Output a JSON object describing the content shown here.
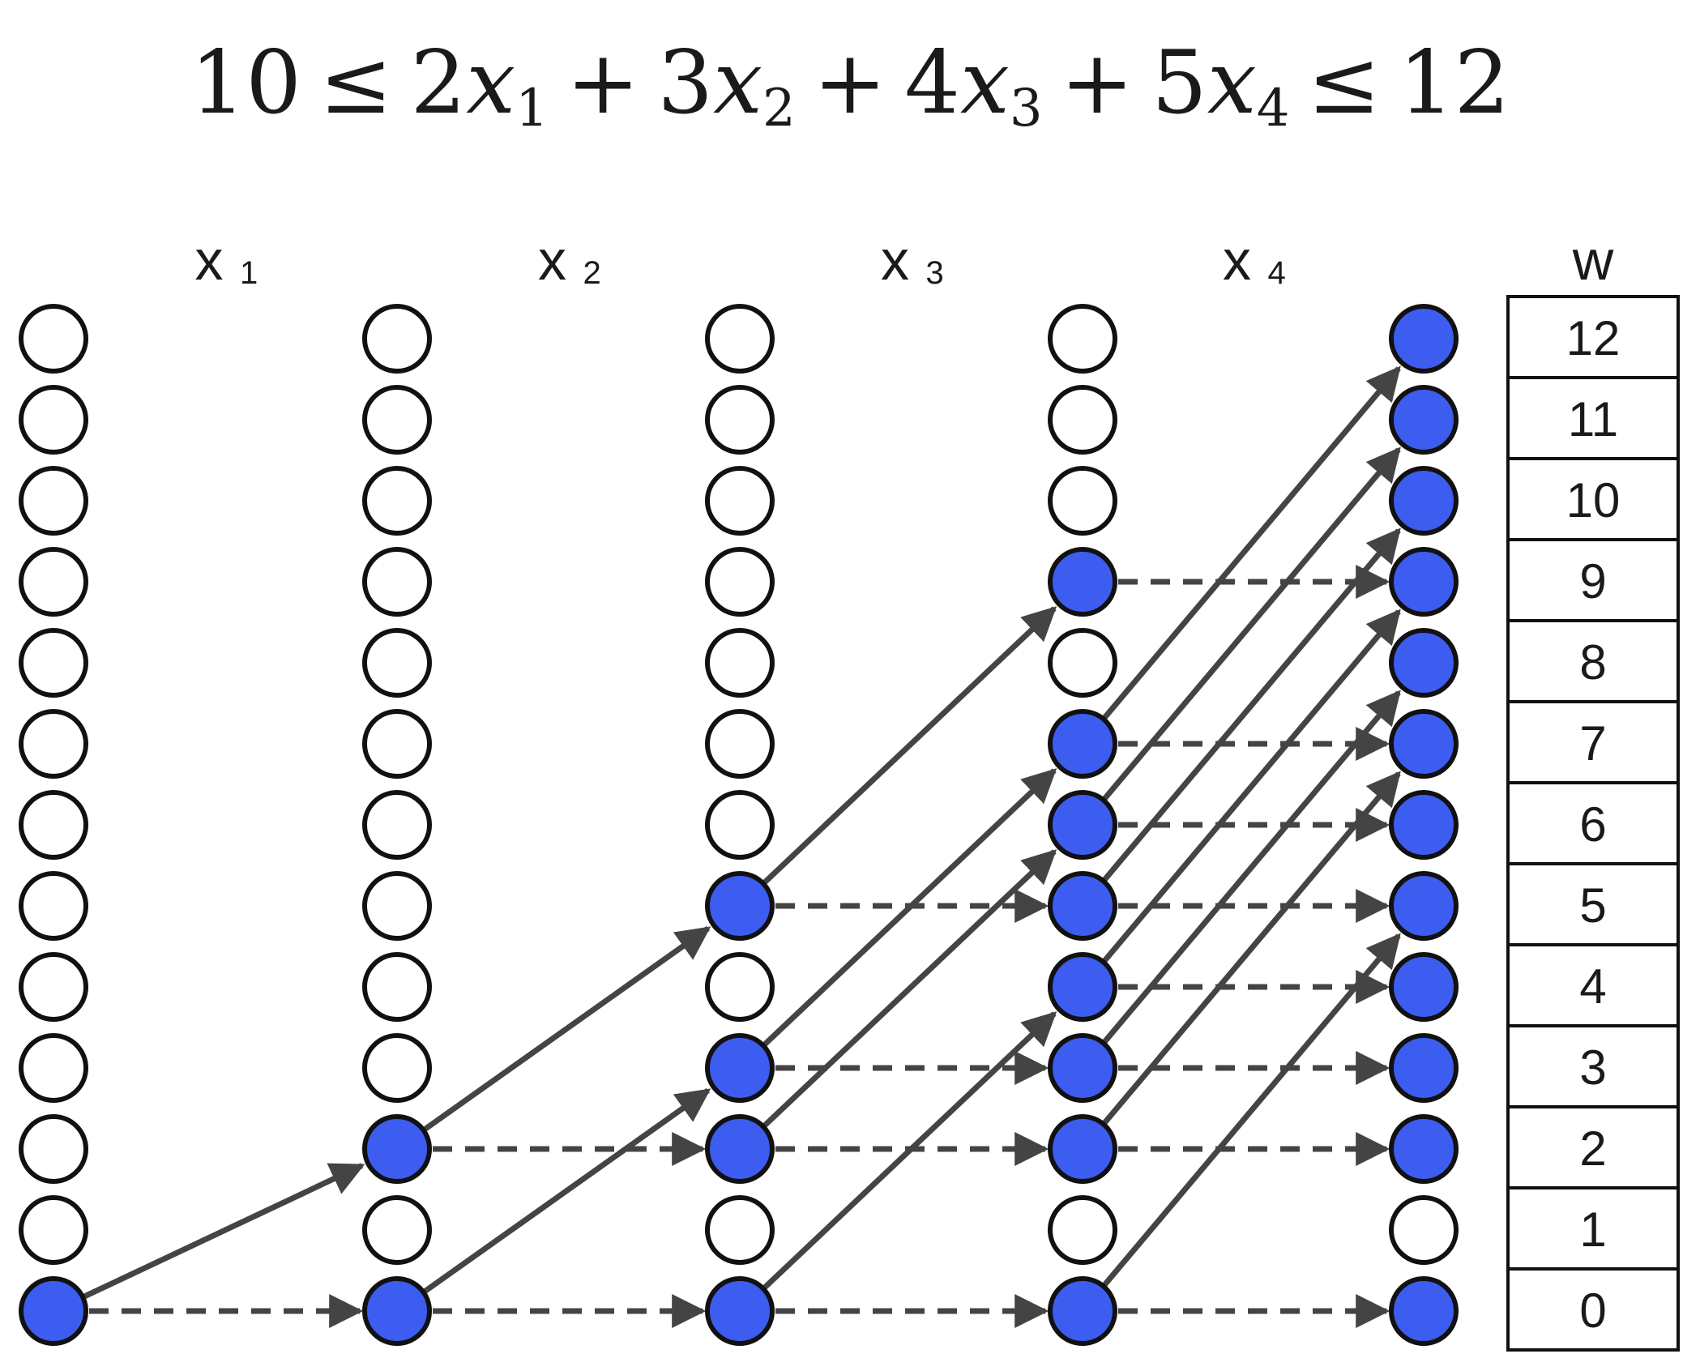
{
  "formula": {
    "lower": "10",
    "le": "≤",
    "plus": "+",
    "upper": "12",
    "terms": [
      {
        "coef": "2",
        "var": "x",
        "sub": "1"
      },
      {
        "coef": "3",
        "var": "x",
        "sub": "2"
      },
      {
        "coef": "4",
        "var": "x",
        "sub": "3"
      },
      {
        "coef": "5",
        "var": "x",
        "sub": "4"
      }
    ]
  },
  "columns": [
    {
      "label": "x",
      "sub": "1"
    },
    {
      "label": "x",
      "sub": "2"
    },
    {
      "label": "x",
      "sub": "3"
    },
    {
      "label": "x",
      "sub": "4"
    },
    {
      "label": "",
      "sub": ""
    }
  ],
  "weight_table": {
    "header": "w",
    "values": [
      "12",
      "11",
      "10",
      "9",
      "8",
      "7",
      "6",
      "5",
      "4",
      "3",
      "2",
      "1",
      "0"
    ]
  },
  "node_levels": [
    12,
    11,
    10,
    9,
    8,
    7,
    6,
    5,
    4,
    3,
    2,
    1,
    0
  ],
  "active_nodes": [
    [
      0
    ],
    [
      0,
      2
    ],
    [
      0,
      2,
      3,
      5
    ],
    [
      0,
      2,
      3,
      4,
      5,
      6,
      7,
      9
    ],
    [
      0,
      2,
      3,
      4,
      5,
      6,
      7,
      8,
      9,
      10,
      11,
      12
    ]
  ],
  "weights": [
    2,
    3,
    4,
    5
  ],
  "colors": {
    "active_fill": "#3d5cf0",
    "inactive_fill": "#ffffff",
    "stroke": "#111111",
    "edge": "#444444"
  },
  "edge_types": {
    "take": "solid",
    "skip": "dashed"
  }
}
